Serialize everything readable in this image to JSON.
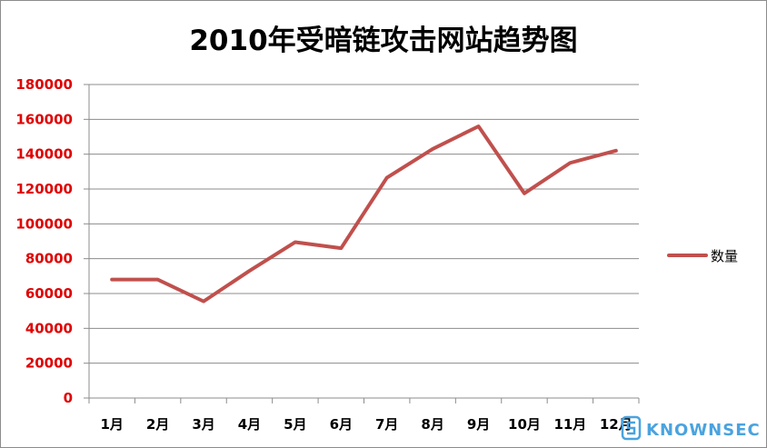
{
  "chart_data": {
    "type": "line",
    "title": "2010年受暗链攻击网站趋势图",
    "categories": [
      "1月",
      "2月",
      "3月",
      "4月",
      "5月",
      "6月",
      "7月",
      "8月",
      "9月",
      "10月",
      "11月",
      "12月"
    ],
    "series": [
      {
        "name": "数量",
        "values": [
          68000,
          68000,
          55500,
          73000,
          89500,
          86000,
          126500,
          143000,
          156000,
          117500,
          135000,
          142000
        ],
        "color": "#c0504d"
      }
    ],
    "ylim": [
      0,
      180000
    ],
    "yticks": [
      "0",
      "20000",
      "40000",
      "60000",
      "80000",
      "100000",
      "120000",
      "140000",
      "160000",
      "180000"
    ],
    "grid": true,
    "legend": "right",
    "tick_color": "#e00000"
  },
  "watermark": {
    "text": "KNOWNSEC",
    "color": "#4aa3df"
  }
}
